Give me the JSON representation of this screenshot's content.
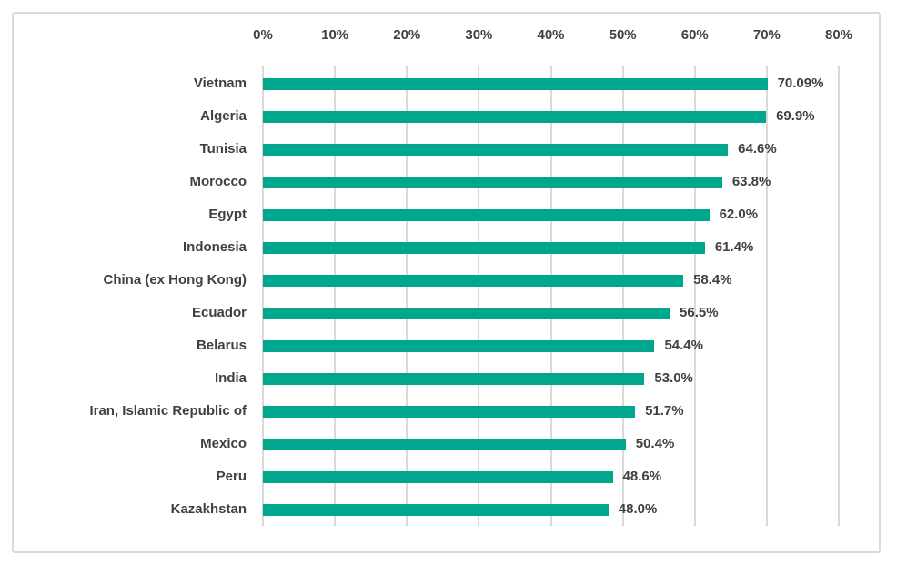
{
  "chart_data": {
    "type": "bar",
    "orientation": "horizontal",
    "title": "",
    "categories": [
      "Vietnam",
      "Algeria",
      "Tunisia",
      "Morocco",
      "Egypt",
      "Indonesia",
      "China (ex Hong Kong)",
      "Ecuador",
      "Belarus",
      "India",
      "Iran, Islamic Republic of",
      "Mexico",
      "Peru",
      "Kazakhstan"
    ],
    "values": [
      70.09,
      69.9,
      64.6,
      63.8,
      62.0,
      61.4,
      58.4,
      56.5,
      54.4,
      53.0,
      51.7,
      50.4,
      48.6,
      48.0
    ],
    "value_labels": [
      "70.09%",
      "69.9%",
      "64.6%",
      "63.8%",
      "62.0%",
      "61.4%",
      "58.4%",
      "56.5%",
      "54.4%",
      "53.0%",
      "51.7%",
      "50.4%",
      "48.6%",
      "48.0%"
    ],
    "x_ticks": [
      "0%",
      "10%",
      "20%",
      "30%",
      "40%",
      "50%",
      "60%",
      "70%",
      "80%"
    ],
    "xlim": [
      0,
      80
    ],
    "xlabel": "",
    "ylabel": "",
    "grid": true,
    "legend": "none",
    "bar_color": "#00A78C",
    "gridline_color": "#D9D9D9",
    "text_color": "#404040",
    "frame_color": "#D9D9D9"
  }
}
